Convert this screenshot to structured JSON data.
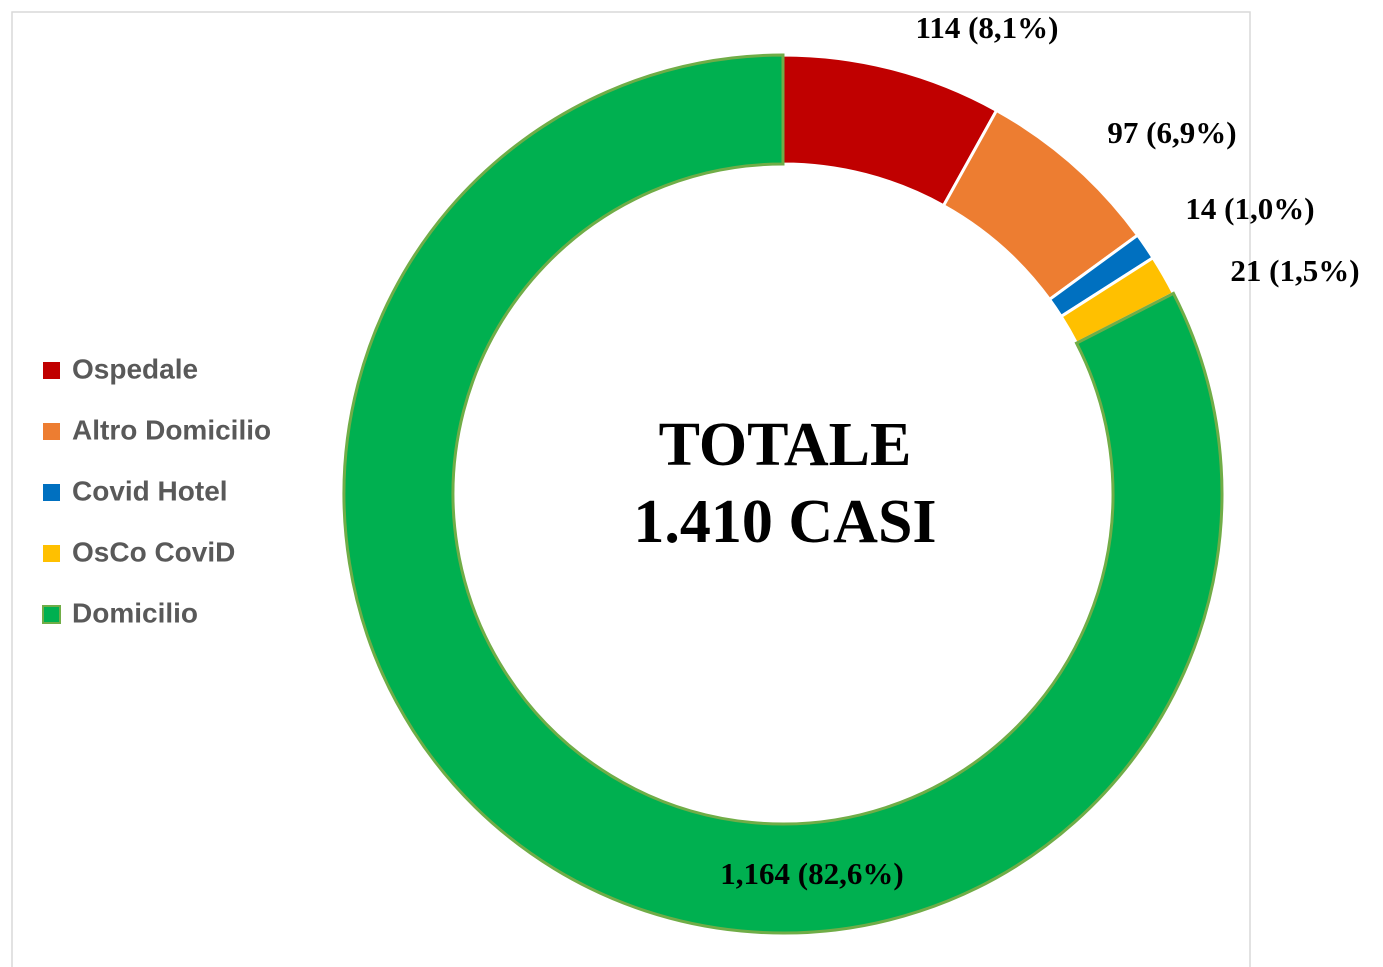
{
  "chart_data": {
    "type": "donut",
    "annotations": [
      "TOTALE",
      "1.410 CASI"
    ],
    "categories": [
      "Ospedale",
      "Altro Domicilio",
      "Covid Hotel",
      "OsCo CoviD",
      "Domicilio"
    ],
    "values": [
      114,
      97,
      14,
      21,
      1164
    ],
    "value_labels": [
      "114 (8,1%)",
      "97 (6,9%)",
      "14 (1,0%)",
      "21 (1,5%)",
      "1,164 (82,6%)"
    ],
    "colors": [
      "#c00000",
      "#ed7d31",
      "#0070c0",
      "#ffc000",
      "#00b050"
    ],
    "legend": "left"
  }
}
